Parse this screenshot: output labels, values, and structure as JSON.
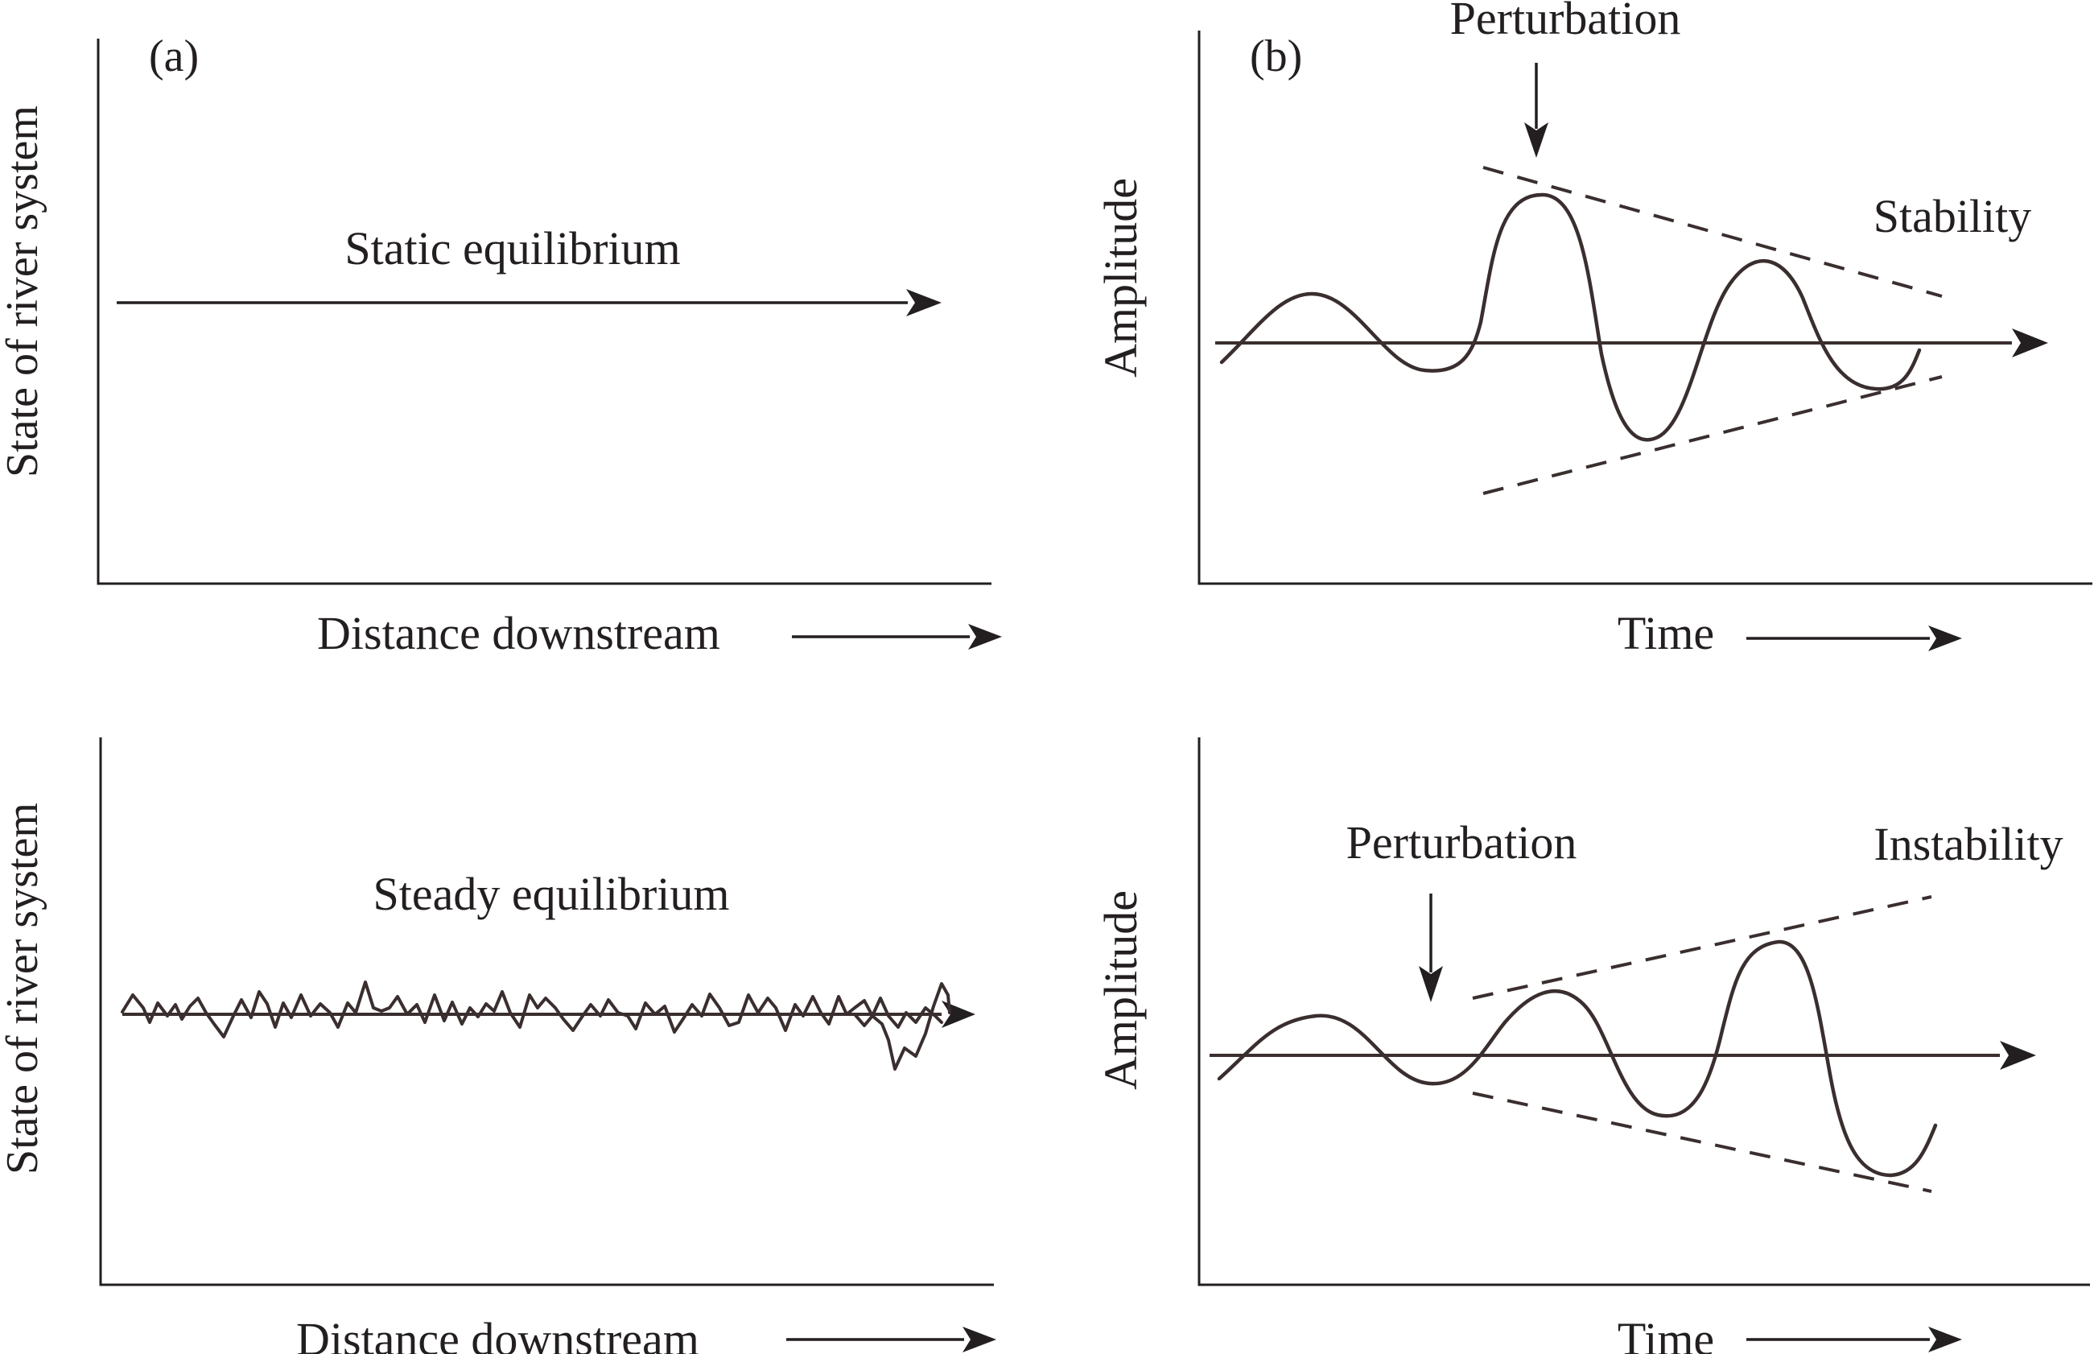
{
  "panels": {
    "a": {
      "tag": "(a)"
    },
    "b": {
      "tag": "(b)"
    },
    "static": {
      "ylabel": "State of river system",
      "xlabel": "Distance downstream",
      "title": "Static equilibrium"
    },
    "steady": {
      "ylabel": "State of river system",
      "xlabel": "Distance downstream",
      "title": "Steady equilibrium"
    },
    "stability": {
      "ylabel": "Amplitude",
      "xlabel": "Time",
      "perturbation": "Perturbation",
      "state": "Stability"
    },
    "instability": {
      "ylabel": "Amplitude",
      "xlabel": "Time",
      "perturbation": "Perturbation",
      "state": "Instability"
    }
  }
}
